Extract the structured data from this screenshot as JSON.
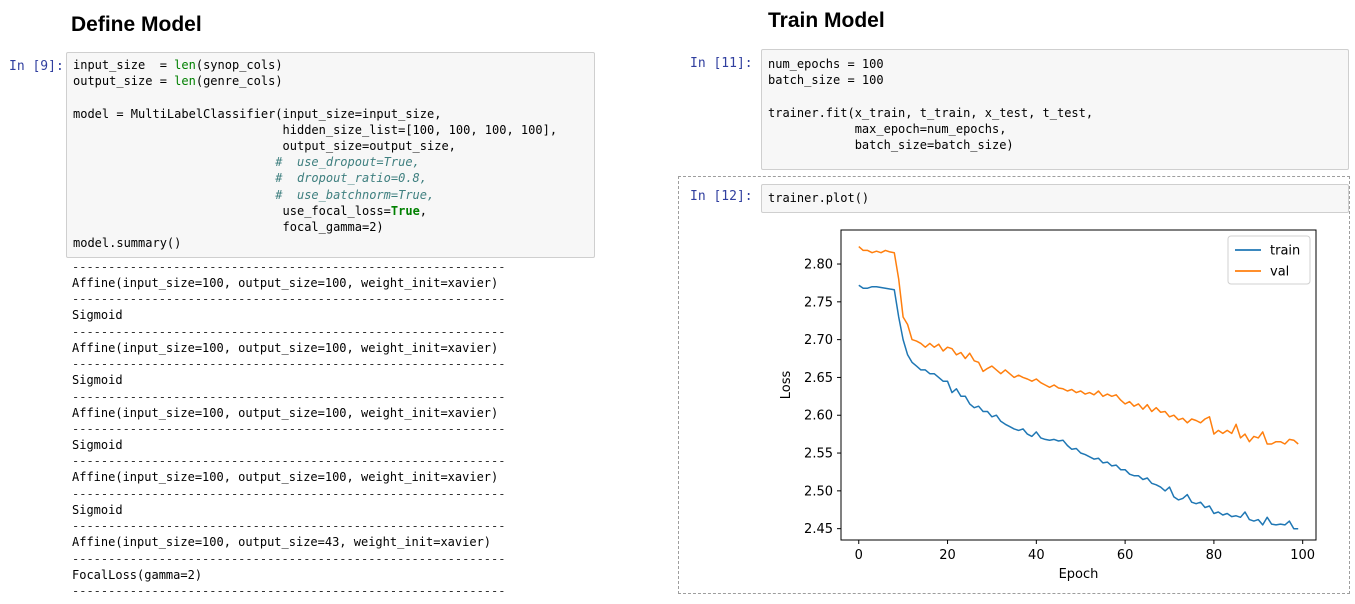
{
  "left": {
    "heading": "Define Model",
    "cell9": {
      "prompt": "In [9]:",
      "lines": [
        [
          {
            "t": "input_size  = "
          },
          {
            "t": "len",
            "c": "kw-builtin"
          },
          {
            "t": "(synop_cols)"
          }
        ],
        [
          {
            "t": "output_size = "
          },
          {
            "t": "len",
            "c": "kw-builtin"
          },
          {
            "t": "(genre_cols)"
          }
        ],
        [
          {
            "t": ""
          }
        ],
        [
          {
            "t": "model = MultiLabelClassifier(input_size=input_size,"
          }
        ],
        [
          {
            "t": "                             hidden_size_list=[100, 100, 100, 100],"
          }
        ],
        [
          {
            "t": "                             output_size=output_size,"
          }
        ],
        [
          {
            "t": "                            #  use_dropout=True,",
            "c": "cm"
          }
        ],
        [
          {
            "t": "                            #  dropout_ratio=0.8,",
            "c": "cm"
          }
        ],
        [
          {
            "t": "                            #  use_batchnorm=True,",
            "c": "cm"
          }
        ],
        [
          {
            "t": "                             use_focal_loss="
          },
          {
            "t": "True",
            "c": "kw-bold"
          },
          {
            "t": ","
          }
        ],
        [
          {
            "t": "                             focal_gamma=2)"
          }
        ],
        [
          {
            "t": "model.summary()"
          }
        ]
      ]
    },
    "output_lines": [
      "Affine(input_size=100, output_size=100, weight_init=xavier)",
      "Sigmoid",
      "Affine(input_size=100, output_size=100, weight_init=xavier)",
      "Sigmoid",
      "Affine(input_size=100, output_size=100, weight_init=xavier)",
      "Sigmoid",
      "Affine(input_size=100, output_size=100, weight_init=xavier)",
      "Sigmoid",
      "Affine(input_size=100, output_size=43, weight_init=xavier)",
      "FocalLoss(gamma=2)"
    ],
    "separator": "------------------------------------------------------------"
  },
  "right": {
    "heading": "Train Model",
    "cell11": {
      "prompt": "In [11]:",
      "lines": [
        [
          {
            "t": "num_epochs = 100"
          }
        ],
        [
          {
            "t": "batch_size = 100"
          }
        ],
        [
          {
            "t": ""
          }
        ],
        [
          {
            "t": "trainer.fit(x_train, t_train, x_test, t_test,"
          }
        ],
        [
          {
            "t": "            max_epoch=num_epochs,"
          }
        ],
        [
          {
            "t": "            batch_size=batch_size)"
          }
        ]
      ]
    },
    "cell12": {
      "prompt": "In [12]:",
      "lines": [
        [
          {
            "t": "trainer.plot()"
          }
        ]
      ]
    }
  },
  "chart_data": {
    "type": "line",
    "xlabel": "Epoch",
    "ylabel": "Loss",
    "xlim": [
      -4,
      103
    ],
    "ylim": [
      2.435,
      2.845
    ],
    "xticks": [
      0,
      20,
      40,
      60,
      80,
      100
    ],
    "yticks": [
      2.45,
      2.5,
      2.55,
      2.6,
      2.65,
      2.7,
      2.75,
      2.8
    ],
    "grid": false,
    "legend_position": "top-right",
    "series": [
      {
        "name": "train",
        "color": "#1f77b4",
        "x": [
          0,
          1,
          2,
          3,
          4,
          5,
          6,
          7,
          8,
          9,
          10,
          11,
          12,
          13,
          14,
          15,
          16,
          17,
          18,
          19,
          20,
          21,
          22,
          23,
          24,
          25,
          26,
          27,
          28,
          29,
          30,
          31,
          32,
          33,
          34,
          35,
          36,
          37,
          38,
          39,
          40,
          41,
          42,
          43,
          44,
          45,
          46,
          47,
          48,
          49,
          50,
          51,
          52,
          53,
          54,
          55,
          56,
          57,
          58,
          59,
          60,
          61,
          62,
          63,
          64,
          65,
          66,
          67,
          68,
          69,
          70,
          71,
          72,
          73,
          74,
          75,
          76,
          77,
          78,
          79,
          80,
          81,
          82,
          83,
          84,
          85,
          86,
          87,
          88,
          89,
          90,
          91,
          92,
          93,
          94,
          95,
          96,
          97,
          98,
          99
        ],
        "y": [
          2.772,
          2.768,
          2.768,
          2.77,
          2.77,
          2.769,
          2.768,
          2.767,
          2.766,
          2.73,
          2.7,
          2.68,
          2.67,
          2.665,
          2.66,
          2.66,
          2.655,
          2.655,
          2.65,
          2.645,
          2.645,
          2.63,
          2.635,
          2.625,
          2.625,
          2.615,
          2.61,
          2.612,
          2.605,
          2.605,
          2.598,
          2.6,
          2.592,
          2.588,
          2.585,
          2.582,
          2.58,
          2.582,
          2.575,
          2.572,
          2.578,
          2.57,
          2.568,
          2.567,
          2.568,
          2.566,
          2.567,
          2.56,
          2.555,
          2.556,
          2.55,
          2.548,
          2.545,
          2.542,
          2.543,
          2.537,
          2.538,
          2.533,
          2.534,
          2.528,
          2.528,
          2.522,
          2.52,
          2.52,
          2.515,
          2.517,
          2.51,
          2.508,
          2.505,
          2.5,
          2.505,
          2.492,
          2.488,
          2.49,
          2.495,
          2.485,
          2.483,
          2.485,
          2.478,
          2.48,
          2.47,
          2.472,
          2.468,
          2.47,
          2.466,
          2.467,
          2.465,
          2.472,
          2.462,
          2.46,
          2.462,
          2.455,
          2.465,
          2.456,
          2.455,
          2.456,
          2.455,
          2.46,
          2.45,
          2.45
        ]
      },
      {
        "name": "val",
        "color": "#ff7f0e",
        "x": [
          0,
          1,
          2,
          3,
          4,
          5,
          6,
          7,
          8,
          9,
          10,
          11,
          12,
          13,
          14,
          15,
          16,
          17,
          18,
          19,
          20,
          21,
          22,
          23,
          24,
          25,
          26,
          27,
          28,
          29,
          30,
          31,
          32,
          33,
          34,
          35,
          36,
          37,
          38,
          39,
          40,
          41,
          42,
          43,
          44,
          45,
          46,
          47,
          48,
          49,
          50,
          51,
          52,
          53,
          54,
          55,
          56,
          57,
          58,
          59,
          60,
          61,
          62,
          63,
          64,
          65,
          66,
          67,
          68,
          69,
          70,
          71,
          72,
          73,
          74,
          75,
          76,
          77,
          78,
          79,
          80,
          81,
          82,
          83,
          84,
          85,
          86,
          87,
          88,
          89,
          90,
          91,
          92,
          93,
          94,
          95,
          96,
          97,
          98,
          99
        ],
        "y": [
          2.823,
          2.818,
          2.818,
          2.815,
          2.817,
          2.815,
          2.818,
          2.816,
          2.815,
          2.78,
          2.73,
          2.72,
          2.7,
          2.698,
          2.695,
          2.69,
          2.695,
          2.69,
          2.694,
          2.685,
          2.69,
          2.688,
          2.68,
          2.683,
          2.675,
          2.682,
          2.672,
          2.67,
          2.658,
          2.662,
          2.665,
          2.66,
          2.655,
          2.66,
          2.655,
          2.65,
          2.653,
          2.65,
          2.648,
          2.645,
          2.648,
          2.643,
          2.64,
          2.637,
          2.64,
          2.636,
          2.635,
          2.632,
          2.634,
          2.63,
          2.632,
          2.628,
          2.63,
          2.627,
          2.632,
          2.625,
          2.628,
          2.625,
          2.627,
          2.62,
          2.615,
          2.618,
          2.612,
          2.615,
          2.608,
          2.614,
          2.605,
          2.61,
          2.604,
          2.605,
          2.598,
          2.6,
          2.594,
          2.596,
          2.59,
          2.595,
          2.593,
          2.59,
          2.595,
          2.598,
          2.575,
          2.58,
          2.576,
          2.58,
          2.576,
          2.588,
          2.57,
          2.575,
          2.565,
          2.572,
          2.57,
          2.578,
          2.562,
          2.562,
          2.565,
          2.565,
          2.562,
          2.568,
          2.567,
          2.562
        ]
      }
    ]
  }
}
